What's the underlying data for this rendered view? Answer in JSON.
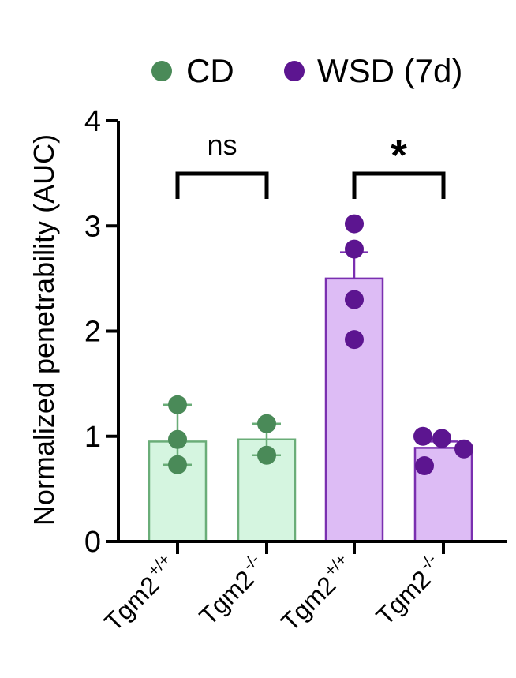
{
  "chart_data": {
    "type": "bar",
    "ylabel": "Normalized penetrability (AUC)",
    "ylim": [
      0,
      4
    ],
    "yticks": [
      0,
      1,
      2,
      3,
      4
    ],
    "legend": {
      "placement": "top",
      "entries": [
        {
          "label": "CD",
          "color": "#4a8a58"
        },
        {
          "label": "WSD (7d)",
          "color": "#5c1590"
        }
      ]
    },
    "categories": [
      {
        "base": "Tgm2",
        "sup": "+/+"
      },
      {
        "base": "Tgm2",
        "sup": "-/-"
      },
      {
        "base": "Tgm2",
        "sup": "+/+"
      },
      {
        "base": "Tgm2",
        "sup": "-/-"
      }
    ],
    "series": [
      {
        "name": "CD",
        "color": "#4a8a58",
        "fill": "#d5f5e0",
        "edge": "#6aad78",
        "bars": [
          {
            "category_index": 0,
            "mean": 0.95,
            "err_low": 0.73,
            "err_high": 1.3,
            "points": [
              1.3,
              0.97,
              0.73
            ]
          },
          {
            "category_index": 1,
            "mean": 0.97,
            "err_low": 0.82,
            "err_high": 1.12,
            "points": [
              1.12,
              0.82
            ]
          }
        ]
      },
      {
        "name": "WSD (7d)",
        "color": "#5c1590",
        "fill": "#ddbcf5",
        "edge": "#7a2fb0",
        "bars": [
          {
            "category_index": 2,
            "mean": 2.5,
            "err_low": 2.5,
            "err_high": 2.75,
            "points": [
              3.02,
              2.78,
              2.3,
              1.92
            ]
          },
          {
            "category_index": 3,
            "mean": 0.89,
            "err_low": 0.89,
            "err_high": 0.95,
            "points": [
              1.0,
              0.98,
              0.88,
              0.72
            ]
          }
        ]
      }
    ],
    "annotations": [
      {
        "between": [
          0,
          1
        ],
        "text": "ns"
      },
      {
        "between": [
          2,
          3
        ],
        "text": "*"
      }
    ]
  }
}
